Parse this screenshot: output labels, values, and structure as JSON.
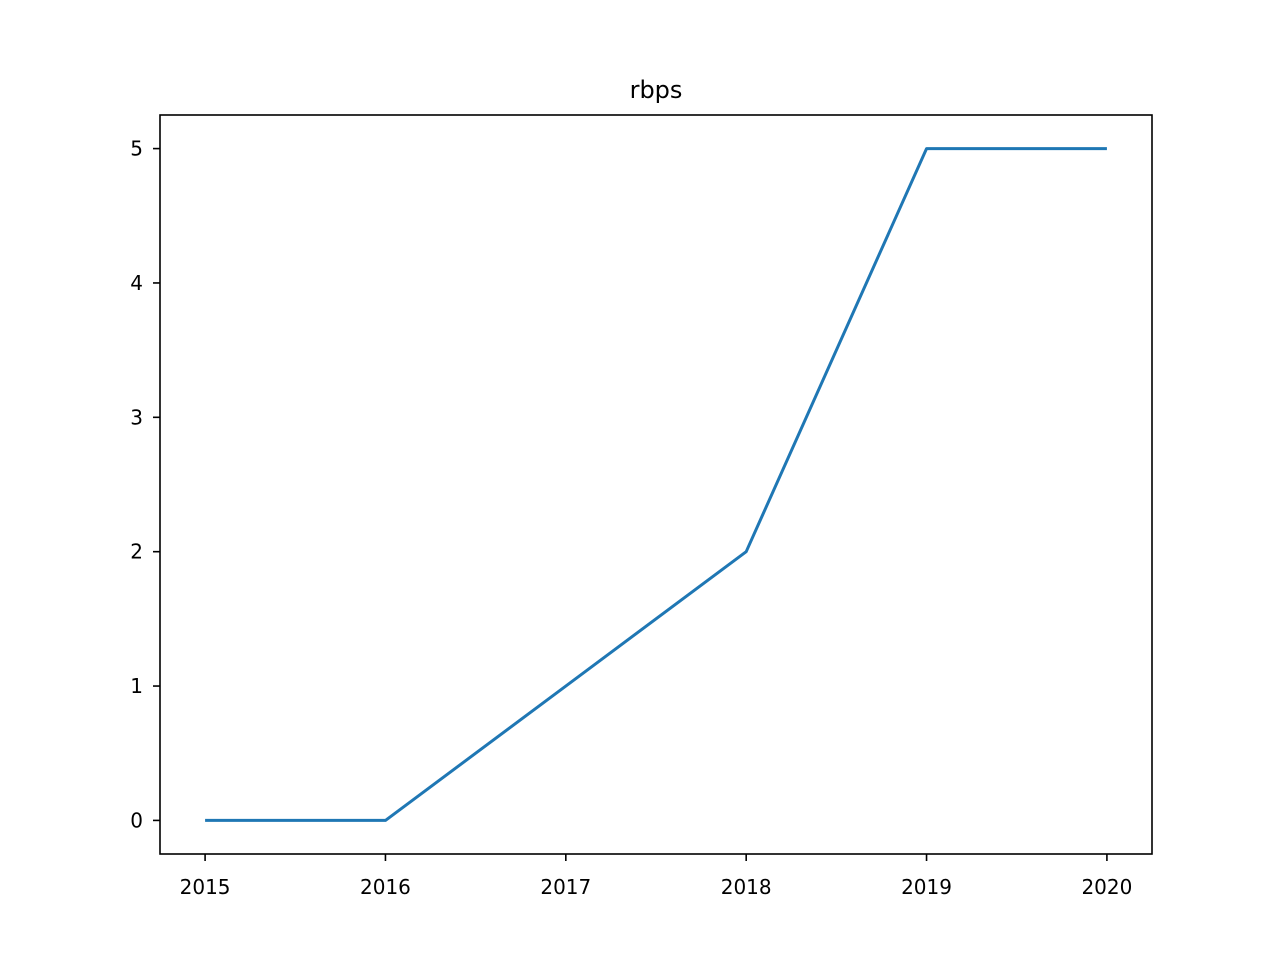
{
  "chart_data": {
    "type": "line",
    "title": "rbps",
    "xlabel": "",
    "ylabel": "",
    "x": [
      2015,
      2016,
      2017,
      2018,
      2019,
      2020
    ],
    "series": [
      {
        "values": [
          0,
          0,
          1,
          2,
          5,
          5
        ]
      }
    ],
    "xticks": [
      "2015",
      "2016",
      "2017",
      "2018",
      "2019",
      "2020"
    ],
    "yticks": [
      "0",
      "1",
      "2",
      "3",
      "4",
      "5"
    ],
    "xlim": [
      2014.75,
      2020.25
    ],
    "ylim": [
      -0.25,
      5.25
    ],
    "grid": false,
    "colors": {
      "line": "#1f77b4",
      "axes": "#000000",
      "background": "#ffffff"
    }
  }
}
